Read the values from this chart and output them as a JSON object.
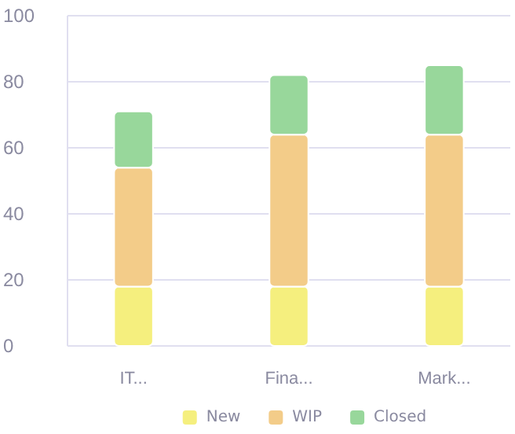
{
  "chart_data": {
    "type": "bar",
    "stacked": true,
    "categories": [
      "IT...",
      "Fina...",
      "Mark..."
    ],
    "series": [
      {
        "name": "New",
        "color": "#f5ef7e",
        "values": [
          18,
          18,
          18
        ]
      },
      {
        "name": "WIP",
        "color": "#f3cc89",
        "values": [
          36,
          46,
          46
        ]
      },
      {
        "name": "Closed",
        "color": "#98d79b",
        "values": [
          17,
          18,
          21
        ]
      }
    ],
    "ylim": [
      0,
      100
    ],
    "yticks": [
      0,
      20,
      40,
      60,
      80,
      100
    ],
    "grid": "y",
    "legend": "bottom"
  }
}
